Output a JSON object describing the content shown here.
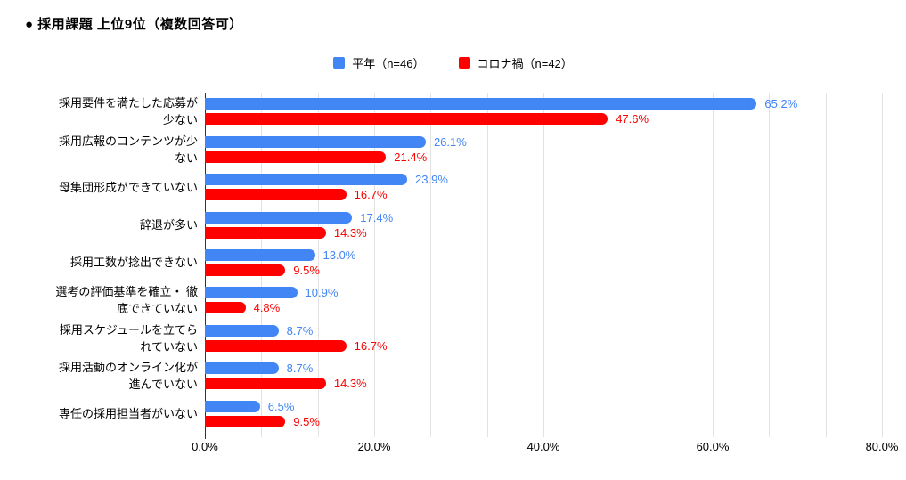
{
  "title": "● 採用課題 上位9位（複数回答可）",
  "legend": {
    "items": [
      {
        "label": "平年（n=46）",
        "color": "#4285f4"
      },
      {
        "label": "コロナ禍（n=42）",
        "color": "#ff0000"
      }
    ]
  },
  "chart_data": {
    "type": "bar",
    "orientation": "horizontal",
    "title": "採用課題 上位9位（複数回答可）",
    "categories": [
      "採用要件を満たした応募が少ない",
      "採用広報のコンテンツが少ない",
      "母集団形成ができていない",
      "辞退が多い",
      "採用工数が捻出できない",
      "選考の評価基準を確立・徹底できていない",
      "採用スケジュールを立てられていない",
      "採用活動のオンライン化が進んでいない",
      "専任の採用担当者がいない"
    ],
    "category_lines": [
      [
        "採用要件を満たした応募が",
        "少ない"
      ],
      [
        "採用広報のコンテンツが少",
        "ない"
      ],
      [
        "母集団形成ができていない"
      ],
      [
        "辞退が多い"
      ],
      [
        "採用工数が捻出できない"
      ],
      [
        "選考の評価基準を確立・ 徹",
        "底できていない"
      ],
      [
        "採用スケジュールを立てら",
        "れていない"
      ],
      [
        "採用活動のオンライン化が",
        "進んでいない"
      ],
      [
        "専任の採用担当者がいない"
      ]
    ],
    "series": [
      {
        "name": "平年（n=46）",
        "color": "#4285f4",
        "values": [
          65.2,
          26.1,
          23.9,
          17.4,
          13.0,
          10.9,
          8.7,
          8.7,
          6.5
        ]
      },
      {
        "name": "コロナ禍（n=42）",
        "color": "#ff0000",
        "values": [
          47.6,
          21.4,
          16.7,
          14.3,
          9.5,
          4.8,
          16.7,
          14.3,
          9.5
        ]
      }
    ],
    "value_label_suffix": "%",
    "x_ticks": [
      "0.0%",
      "20.0%",
      "40.0%",
      "60.0%",
      "80.0%"
    ],
    "xlim": [
      0,
      80
    ],
    "grid": true,
    "grid_divisions": 12,
    "legend_position": "top"
  }
}
